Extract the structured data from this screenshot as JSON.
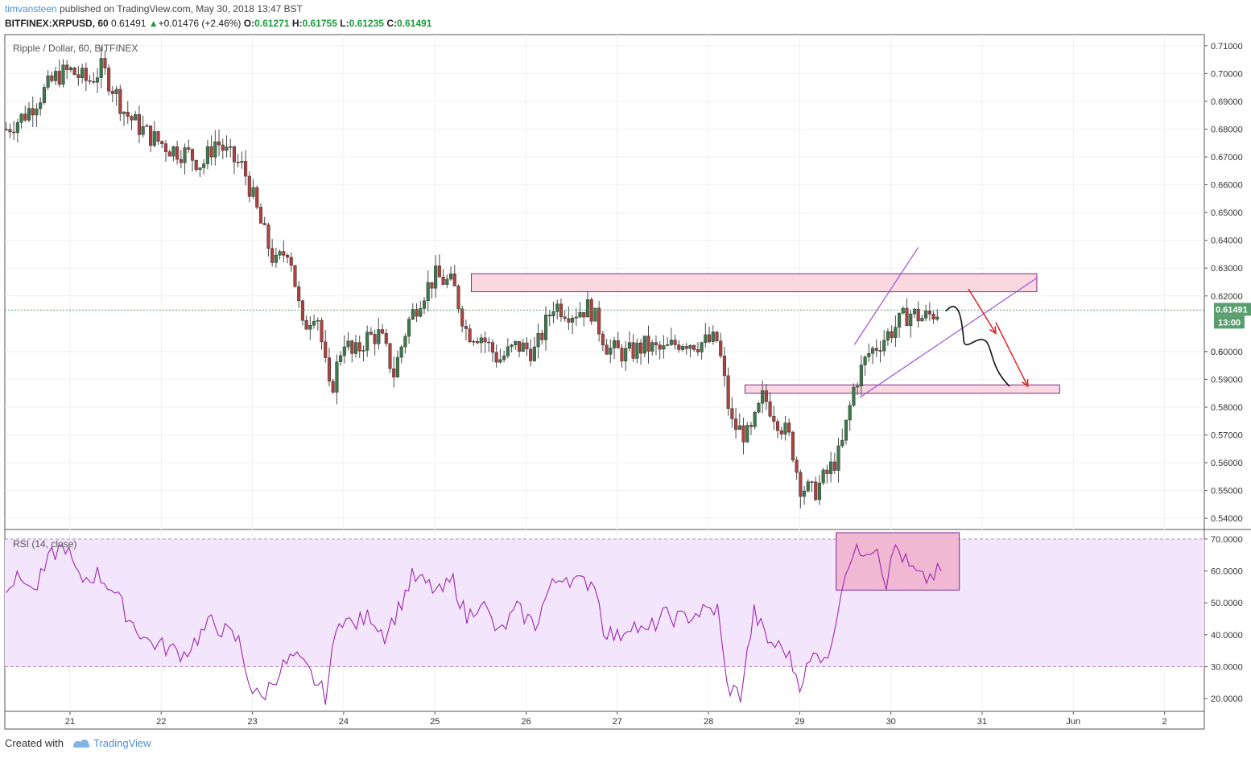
{
  "header": {
    "user": "timvansteen",
    "published_text": "published on TradingView.com, May 30, 2018 13:47 BST",
    "symbol": "BITFINEX:XRPUSD, 60",
    "last": "0.61491",
    "change": "+0.01476 (+2.46%)",
    "open_label": "O:",
    "open": "0.61271",
    "high_label": "H:",
    "high": "0.61755",
    "low_label": "L:",
    "low": "0.61235",
    "close_label": "C:",
    "close": "0.61491"
  },
  "footer": {
    "created_with": "Created with",
    "brand": "TradingView"
  },
  "colors": {
    "up": "#3d7a4b",
    "down": "#b0413e",
    "rsi": "#9c27b0",
    "zone_fill": "#f9d9df",
    "zone_edge": "#7b2d8b",
    "arrow": "#e02020",
    "price_badge": "#5a9e6f"
  },
  "chart_data": [
    {
      "type": "candlestick",
      "title": "Ripple / Dollar, 60, BITFINEX",
      "y_ticks": [
        "0.71000",
        "0.70000",
        "0.69000",
        "0.68000",
        "0.67000",
        "0.66000",
        "0.65000",
        "0.64000",
        "0.63000",
        "0.62000",
        "0.6",
        "0.60000",
        "0.59000",
        "0.58000",
        "0.57000",
        "0.56000",
        "0.55000",
        "0.54000"
      ],
      "ylim": [
        0.536,
        0.714
      ],
      "x_ticks": [
        "21",
        "22",
        "23",
        "24",
        "25",
        "26",
        "27",
        "28",
        "29",
        "30",
        "31",
        "Jun",
        "2"
      ],
      "last_price": 0.61491,
      "last_price_label": "0.61491",
      "countdown_label": "13:00",
      "close_path": [
        [
          20.3,
          0.68
        ],
        [
          20.5,
          0.685
        ],
        [
          20.7,
          0.693
        ],
        [
          20.85,
          0.699
        ],
        [
          21.0,
          0.701
        ],
        [
          21.2,
          0.697
        ],
        [
          21.35,
          0.702
        ],
        [
          21.5,
          0.693
        ],
        [
          21.6,
          0.686
        ],
        [
          21.75,
          0.681
        ],
        [
          21.9,
          0.677
        ],
        [
          22.1,
          0.673
        ],
        [
          22.3,
          0.671
        ],
        [
          22.45,
          0.667
        ],
        [
          22.6,
          0.676
        ],
        [
          22.75,
          0.67
        ],
        [
          22.9,
          0.666
        ],
        [
          23.0,
          0.656
        ],
        [
          23.1,
          0.645
        ],
        [
          23.25,
          0.631
        ],
        [
          23.4,
          0.638
        ],
        [
          23.55,
          0.608
        ],
        [
          23.7,
          0.616
        ],
        [
          23.85,
          0.584
        ],
        [
          24.0,
          0.605
        ],
        [
          24.1,
          0.598
        ],
        [
          24.25,
          0.605
        ],
        [
          24.4,
          0.606
        ],
        [
          24.55,
          0.592
        ],
        [
          24.7,
          0.61
        ],
        [
          24.85,
          0.62
        ],
        [
          25.0,
          0.627
        ],
        [
          25.2,
          0.624
        ],
        [
          25.35,
          0.607
        ],
        [
          25.5,
          0.606
        ],
        [
          25.7,
          0.597
        ],
        [
          25.9,
          0.602
        ],
        [
          26.1,
          0.6
        ],
        [
          26.3,
          0.617
        ],
        [
          26.5,
          0.614
        ],
        [
          26.7,
          0.616
        ],
        [
          26.9,
          0.601
        ],
        [
          27.1,
          0.599
        ],
        [
          27.3,
          0.602
        ],
        [
          27.5,
          0.6
        ],
        [
          27.7,
          0.604
        ],
        [
          27.9,
          0.603
        ],
        [
          28.1,
          0.604
        ],
        [
          28.25,
          0.574
        ],
        [
          28.45,
          0.569
        ],
        [
          28.6,
          0.584
        ],
        [
          28.75,
          0.576
        ],
        [
          28.9,
          0.568
        ],
        [
          29.0,
          0.552
        ],
        [
          29.15,
          0.549
        ],
        [
          29.3,
          0.556
        ],
        [
          29.45,
          0.564
        ],
        [
          29.6,
          0.588
        ],
        [
          29.75,
          0.599
        ],
        [
          29.9,
          0.604
        ],
        [
          30.05,
          0.609
        ],
        [
          30.2,
          0.614
        ],
        [
          30.35,
          0.612
        ],
        [
          30.55,
          0.615
        ]
      ],
      "support_zone": {
        "range": [
          0.585,
          0.588
        ],
        "x_range": [
          28.4,
          31.85
        ]
      },
      "resistance_zone": {
        "range": [
          0.6215,
          0.628
        ],
        "x_range": [
          25.4,
          31.6
        ]
      }
    },
    {
      "type": "line",
      "title": "RSI (14, close)",
      "y_ticks": [
        "70.0000",
        "60.0000",
        "50.0000",
        "40.0000",
        "30.0000",
        "20.0000"
      ],
      "ylim": [
        16,
        73
      ],
      "band": [
        30,
        70
      ],
      "values_path": [
        [
          20.3,
          56
        ],
        [
          20.5,
          58
        ],
        [
          20.6,
          53
        ],
        [
          20.8,
          65
        ],
        [
          20.95,
          68
        ],
        [
          21.1,
          57
        ],
        [
          21.3,
          59
        ],
        [
          21.45,
          55
        ],
        [
          21.65,
          45
        ],
        [
          21.85,
          38
        ],
        [
          22.05,
          36
        ],
        [
          22.25,
          34
        ],
        [
          22.4,
          39
        ],
        [
          22.55,
          44
        ],
        [
          22.7,
          41
        ],
        [
          22.85,
          38
        ],
        [
          23.0,
          22
        ],
        [
          23.1,
          20
        ],
        [
          23.3,
          29
        ],
        [
          23.45,
          33
        ],
        [
          23.6,
          29
        ],
        [
          23.8,
          21
        ],
        [
          23.95,
          46
        ],
        [
          24.1,
          43
        ],
        [
          24.3,
          46
        ],
        [
          24.45,
          40
        ],
        [
          24.6,
          48
        ],
        [
          24.75,
          58
        ],
        [
          24.9,
          56
        ],
        [
          25.05,
          53
        ],
        [
          25.2,
          57
        ],
        [
          25.35,
          45
        ],
        [
          25.5,
          51
        ],
        [
          25.7,
          40
        ],
        [
          25.9,
          48
        ],
        [
          26.1,
          43
        ],
        [
          26.25,
          54
        ],
        [
          26.4,
          59
        ],
        [
          26.6,
          56
        ],
        [
          26.75,
          57
        ],
        [
          26.85,
          42
        ],
        [
          27.0,
          39
        ],
        [
          27.15,
          44
        ],
        [
          27.3,
          40
        ],
        [
          27.5,
          46
        ],
        [
          27.7,
          45
        ],
        [
          27.9,
          47
        ],
        [
          28.1,
          48
        ],
        [
          28.2,
          24
        ],
        [
          28.35,
          21
        ],
        [
          28.5,
          47
        ],
        [
          28.65,
          38
        ],
        [
          28.85,
          35
        ],
        [
          29.0,
          25
        ],
        [
          29.15,
          33
        ],
        [
          29.35,
          35
        ],
        [
          29.45,
          55
        ],
        [
          29.55,
          64
        ],
        [
          29.7,
          67
        ],
        [
          29.85,
          68
        ],
        [
          29.95,
          56
        ],
        [
          30.05,
          68
        ],
        [
          30.2,
          61
        ],
        [
          30.35,
          57
        ],
        [
          30.55,
          60
        ]
      ],
      "highlight_box": {
        "x_range": [
          29.4,
          30.75
        ],
        "y_range": [
          54,
          72
        ]
      }
    }
  ]
}
